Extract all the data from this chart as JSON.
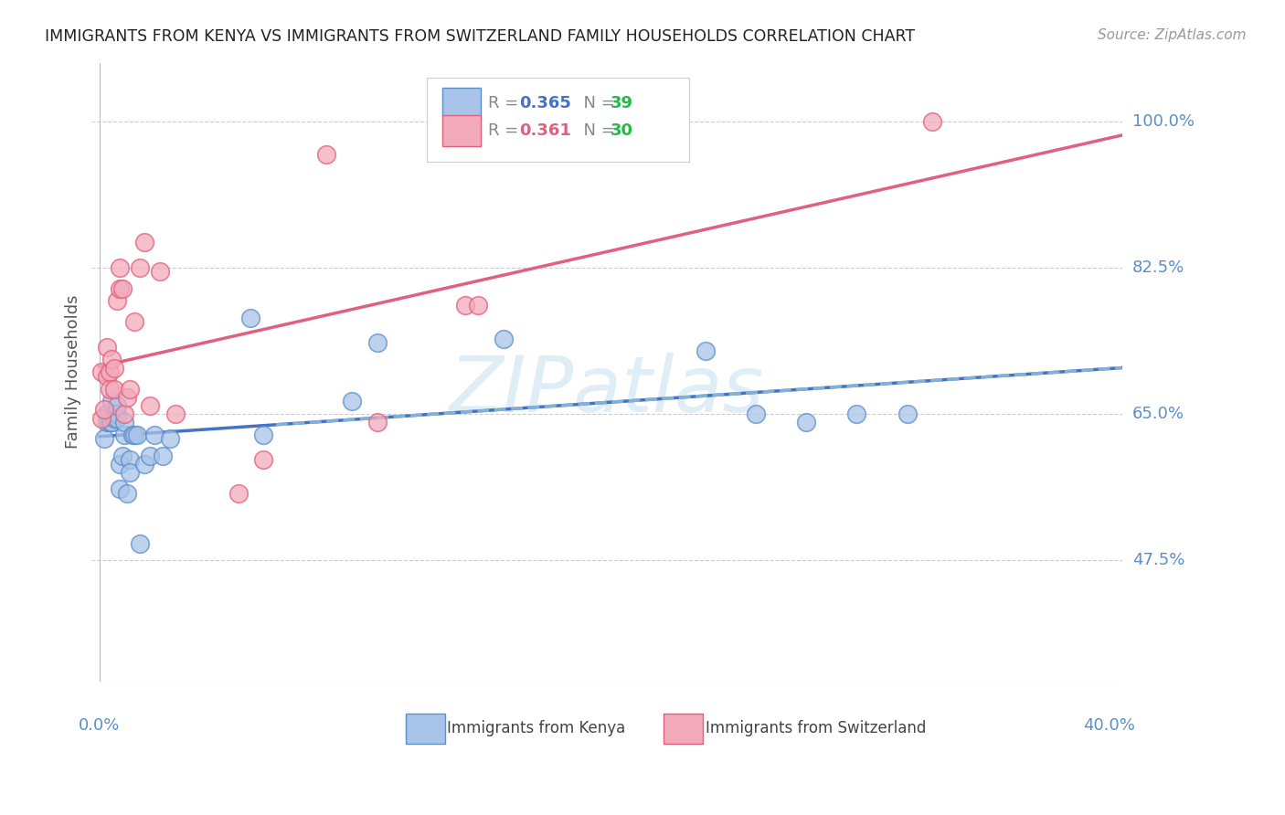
{
  "title": "IMMIGRANTS FROM KENYA VS IMMIGRANTS FROM SWITZERLAND FAMILY HOUSEHOLDS CORRELATION CHART",
  "source": "Source: ZipAtlas.com",
  "ylabel": "Family Households",
  "ytick_labels": [
    "100.0%",
    "82.5%",
    "65.0%",
    "47.5%"
  ],
  "ytick_values": [
    1.0,
    0.825,
    0.65,
    0.475
  ],
  "ymin": 0.33,
  "ymax": 1.07,
  "xmin": -0.003,
  "xmax": 0.405,
  "xtick_left": "0.0%",
  "xtick_right": "40.0%",
  "legend_R1": "R = 0.365",
  "legend_N1": "N = 39",
  "legend_R2": "R = 0.361",
  "legend_N2": "N = 30",
  "color_kenya_fill": "#a8c4e8",
  "color_kenya_edge": "#5b8fc9",
  "color_switzerland_fill": "#f2aabb",
  "color_switzerland_edge": "#e0607a",
  "color_kenya_line": "#4472c4",
  "color_switzerland_line": "#e06080",
  "color_kenya_dashed": "#90bcd8",
  "color_axis_labels": "#5b8fc9",
  "color_grid": "#cccccc",
  "kenya_x": [
    0.002,
    0.003,
    0.003,
    0.004,
    0.005,
    0.005,
    0.005,
    0.006,
    0.006,
    0.007,
    0.007,
    0.007,
    0.008,
    0.008,
    0.009,
    0.01,
    0.01,
    0.011,
    0.012,
    0.012,
    0.013,
    0.014,
    0.015,
    0.016,
    0.018,
    0.02,
    0.022,
    0.025,
    0.028,
    0.06,
    0.065,
    0.1,
    0.11,
    0.16,
    0.24,
    0.26,
    0.28,
    0.3,
    0.32
  ],
  "kenya_y": [
    0.62,
    0.65,
    0.64,
    0.64,
    0.665,
    0.64,
    0.64,
    0.65,
    0.645,
    0.65,
    0.645,
    0.66,
    0.56,
    0.59,
    0.6,
    0.625,
    0.64,
    0.555,
    0.595,
    0.58,
    0.625,
    0.625,
    0.625,
    0.495,
    0.59,
    0.6,
    0.625,
    0.6,
    0.62,
    0.765,
    0.625,
    0.665,
    0.735,
    0.74,
    0.725,
    0.65,
    0.64,
    0.65,
    0.65
  ],
  "switzerland_x": [
    0.001,
    0.001,
    0.002,
    0.003,
    0.003,
    0.004,
    0.004,
    0.005,
    0.006,
    0.006,
    0.007,
    0.008,
    0.008,
    0.009,
    0.01,
    0.011,
    0.012,
    0.014,
    0.016,
    0.018,
    0.02,
    0.024,
    0.03,
    0.055,
    0.065,
    0.09,
    0.11,
    0.145,
    0.15,
    0.33
  ],
  "switzerland_y": [
    0.645,
    0.7,
    0.655,
    0.695,
    0.73,
    0.7,
    0.68,
    0.715,
    0.68,
    0.705,
    0.785,
    0.825,
    0.8,
    0.8,
    0.65,
    0.67,
    0.68,
    0.76,
    0.825,
    0.855,
    0.66,
    0.82,
    0.65,
    0.555,
    0.595,
    0.96,
    0.64,
    0.78,
    0.78,
    1.0
  ],
  "watermark": "ZIPatlas",
  "background_color": "#ffffff"
}
